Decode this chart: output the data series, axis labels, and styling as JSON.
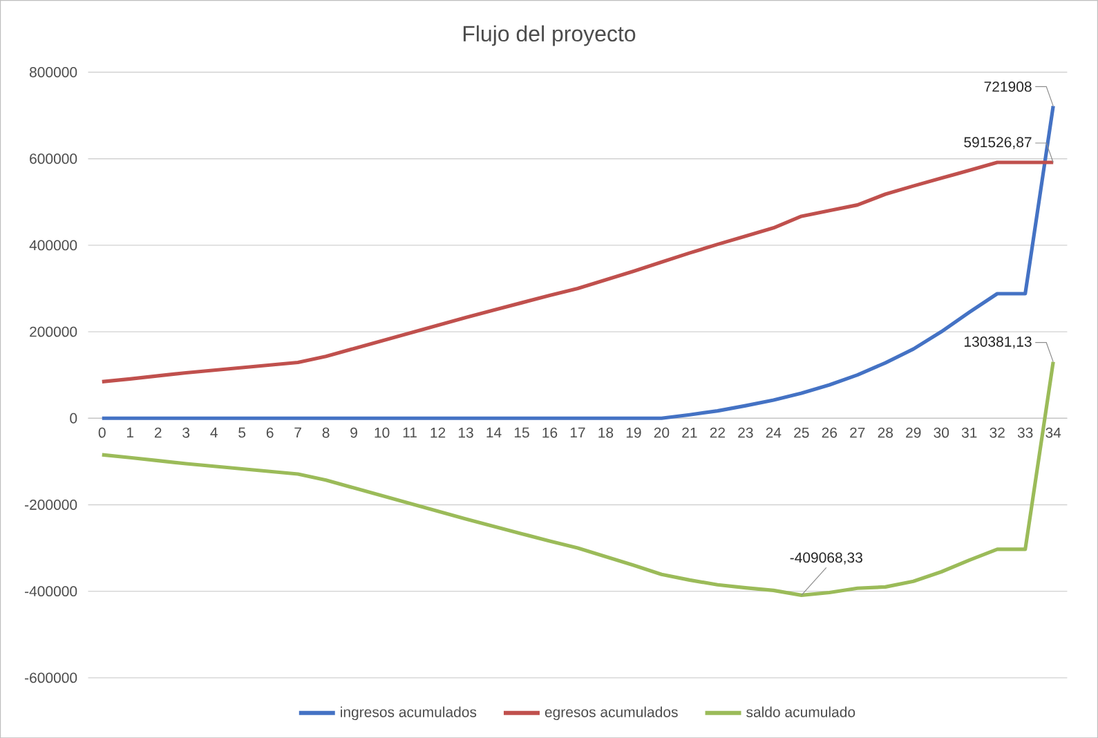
{
  "chart_data": {
    "type": "line",
    "title": "Flujo del proyecto",
    "categories": [
      "0",
      "1",
      "2",
      "3",
      "4",
      "5",
      "6",
      "7",
      "8",
      "9",
      "10",
      "11",
      "12",
      "13",
      "14",
      "15",
      "16",
      "17",
      "18",
      "19",
      "20",
      "21",
      "22",
      "23",
      "24",
      "25",
      "26",
      "27",
      "28",
      "29",
      "30",
      "31",
      "32",
      "33",
      "34"
    ],
    "series": [
      {
        "name": "ingresos acumulados",
        "color": "#4472c4",
        "values": [
          0,
          0,
          0,
          0,
          0,
          0,
          0,
          0,
          0,
          0,
          0,
          0,
          0,
          0,
          0,
          0,
          0,
          0,
          0,
          0,
          0,
          8000,
          17000,
          29000,
          42000,
          58000,
          77000,
          100000,
          128000,
          160000,
          200000,
          245000,
          288000,
          288000,
          721908
        ]
      },
      {
        "name": "egresos acumulados",
        "color": "#c0504d",
        "values": [
          84500,
          91000,
          98000,
          105000,
          111000,
          117000,
          123000,
          129000,
          143000,
          161000,
          179000,
          197000,
          215000,
          233000,
          250000,
          267000,
          284000,
          300000,
          320000,
          340000,
          361000,
          382000,
          402000,
          421000,
          440000,
          467000,
          480000,
          493000,
          518000,
          537000,
          555000,
          573000,
          591526.87,
          591526.87,
          591526.87
        ]
      },
      {
        "name": "saldo acumulado",
        "color": "#9bbb59",
        "values": [
          -84500,
          -91000,
          -98000,
          -105000,
          -111000,
          -117000,
          -123000,
          -129000,
          -143000,
          -161000,
          -179000,
          -197000,
          -215000,
          -233000,
          -250000,
          -267000,
          -284000,
          -300000,
          -320000,
          -340000,
          -361000,
          -374000,
          -385000,
          -392000,
          -398000,
          -409068.33,
          -403000,
          -393000,
          -390000,
          -377000,
          -355000,
          -328000,
          -303000,
          -303000,
          130381.13
        ]
      }
    ],
    "ylim": [
      -600000,
      800000
    ],
    "yticks": [
      -600000,
      -400000,
      -200000,
      0,
      200000,
      400000,
      600000,
      800000
    ],
    "grid": "y",
    "legend": "bottom",
    "marker": "none",
    "line_style": "solid",
    "annotations": [
      {
        "text": "721908",
        "x": "34",
        "y": 721908
      },
      {
        "text": "591526,87",
        "x": "34",
        "y": 591526.87
      },
      {
        "text": "130381,13",
        "x": "34",
        "y": 130381.13
      },
      {
        "text": "-409068,33",
        "x": "25",
        "y": -409068.33
      }
    ]
  }
}
